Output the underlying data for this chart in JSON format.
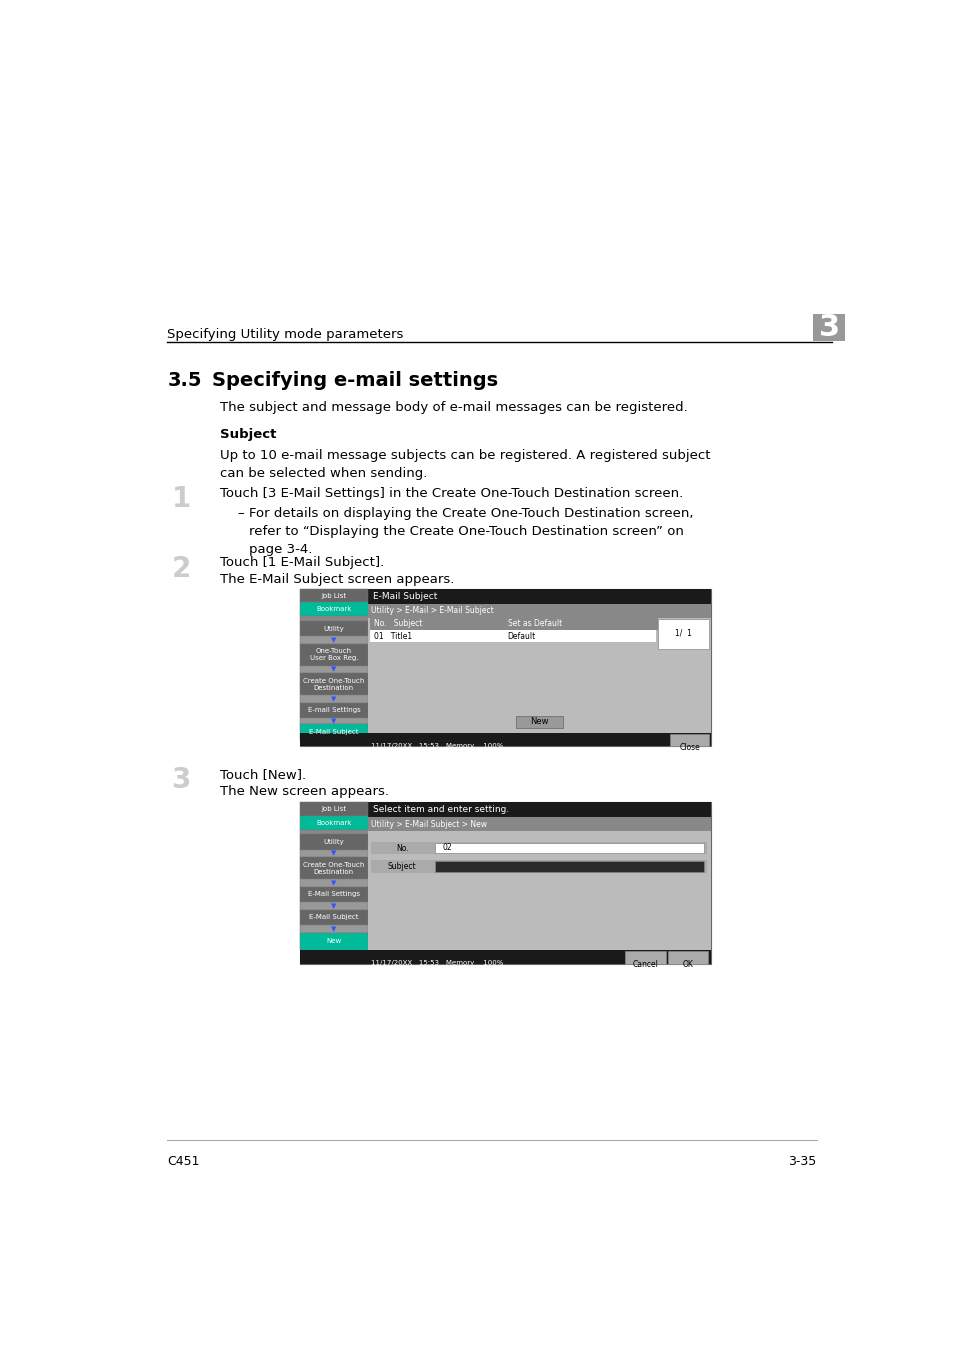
{
  "bg_color": "#ffffff",
  "header_text": "Specifying Utility mode parameters",
  "header_number": "3",
  "section_number": "3.5",
  "section_title": "Specifying e-mail settings",
  "intro_text": "The subject and message body of e-mail messages can be registered.",
  "subject_heading": "Subject",
  "subject_body": "Up to 10 e-mail message subjects can be registered. A registered subject\ncan be selected when sending.",
  "step1_num": "1",
  "step1_text": "Touch [3 E-Mail Settings] in the Create One-Touch Destination screen.",
  "step1_bullet": "For details on displaying the Create One-Touch Destination screen,\nrefer to “Displaying the Create One-Touch Destination screen” on\npage 3-4.",
  "step2_num": "2",
  "step2_text": "Touch [1 E-Mail Subject].",
  "step2_sub": "The E-Mail Subject screen appears.",
  "step3_num": "3",
  "step3_text": "Touch [New].",
  "step3_sub": "The New screen appears.",
  "footer_left": "C451",
  "footer_right": "3-35",
  "text_color": "#000000",
  "teal_color": "#00bb99",
  "blue_color": "#0066cc",
  "btn_dark": "#555555",
  "btn_mid": "#888888",
  "screen_bg": "#aaaaaa",
  "screen_content_bg": "#bbbbbb",
  "title_bar_color": "#111111",
  "status_bar_color": "#222222",
  "row_bg": "#ffffff",
  "header_line_color": "#000000"
}
